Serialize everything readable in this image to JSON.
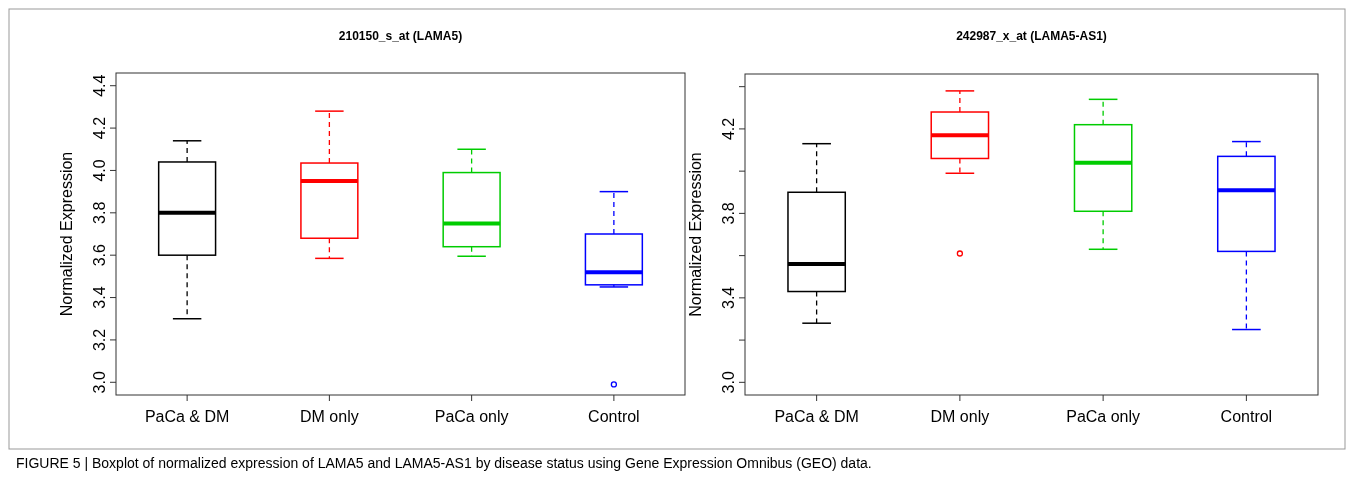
{
  "chart_data": [
    {
      "type": "box",
      "title": "210150_s_at (LAMA5)",
      "ylabel": "Normalized Expression",
      "categories": [
        "PaCa & DM",
        "DM only",
        "PaCa only",
        "Control"
      ],
      "colors": [
        "#000000",
        "#ff0000",
        "#00cc00",
        "#0000ff"
      ],
      "ylim": [
        2.94,
        4.46
      ],
      "yticks": [
        {
          "value": 3,
          "label": "3.0"
        },
        3.2,
        3.4,
        3.6,
        3.8,
        {
          "value": 4,
          "label": "4.0"
        },
        4.2,
        4.4
      ],
      "boxes": [
        {
          "low": 3.3,
          "q1": 3.6,
          "median": 3.8,
          "q3": 4.04,
          "high": 4.14
        },
        {
          "low": 3.585,
          "q1": 3.68,
          "median": 3.95,
          "q3": 4.035,
          "high": 4.28
        },
        {
          "low": 3.595,
          "q1": 3.64,
          "median": 3.75,
          "q3": 3.99,
          "high": 4.1
        },
        {
          "low": 3.45,
          "q1": 3.46,
          "median": 3.52,
          "q3": 3.7,
          "high": 3.9,
          "outliers": [
            2.99
          ]
        }
      ],
      "annotations": [
        "FIGURE 5 | Boxplot of normalized expression of LAMA5 and LAMA5-AS1 by disease status using Gene Expression Omnibus (GEO) data."
      ]
    },
    {
      "type": "box",
      "title": "242987_x_at (LAMA5-AS1)",
      "ylabel": "Normalized Expression",
      "categories": [
        "PaCa & DM",
        "DM only",
        "PaCa only",
        "Control"
      ],
      "colors": [
        "#000000",
        "#ff0000",
        "#00cc00",
        "#0000ff"
      ],
      "ylim": [
        2.94,
        4.46
      ],
      "yticks": [
        {
          "value": 3,
          "label": "3.0"
        },
        {
          "value": 3.2,
          "label": null
        },
        3.4,
        {
          "value": 3.6,
          "label": null
        },
        3.8,
        {
          "value": 4.0,
          "label": null
        },
        4.2,
        {
          "value": 4.4,
          "label": null
        }
      ],
      "boxes": [
        {
          "low": 3.28,
          "q1": 3.43,
          "median": 3.56,
          "q3": 3.9,
          "high": 4.13
        },
        {
          "low": 3.99,
          "q1": 4.06,
          "median": 4.17,
          "q3": 4.28,
          "high": 4.38,
          "outliers": [
            3.61
          ]
        },
        {
          "low": 3.63,
          "q1": 3.81,
          "median": 4.04,
          "q3": 4.22,
          "high": 4.34
        },
        {
          "low": 3.25,
          "q1": 3.62,
          "median": 3.91,
          "q3": 4.07,
          "high": 4.14
        }
      ]
    }
  ]
}
